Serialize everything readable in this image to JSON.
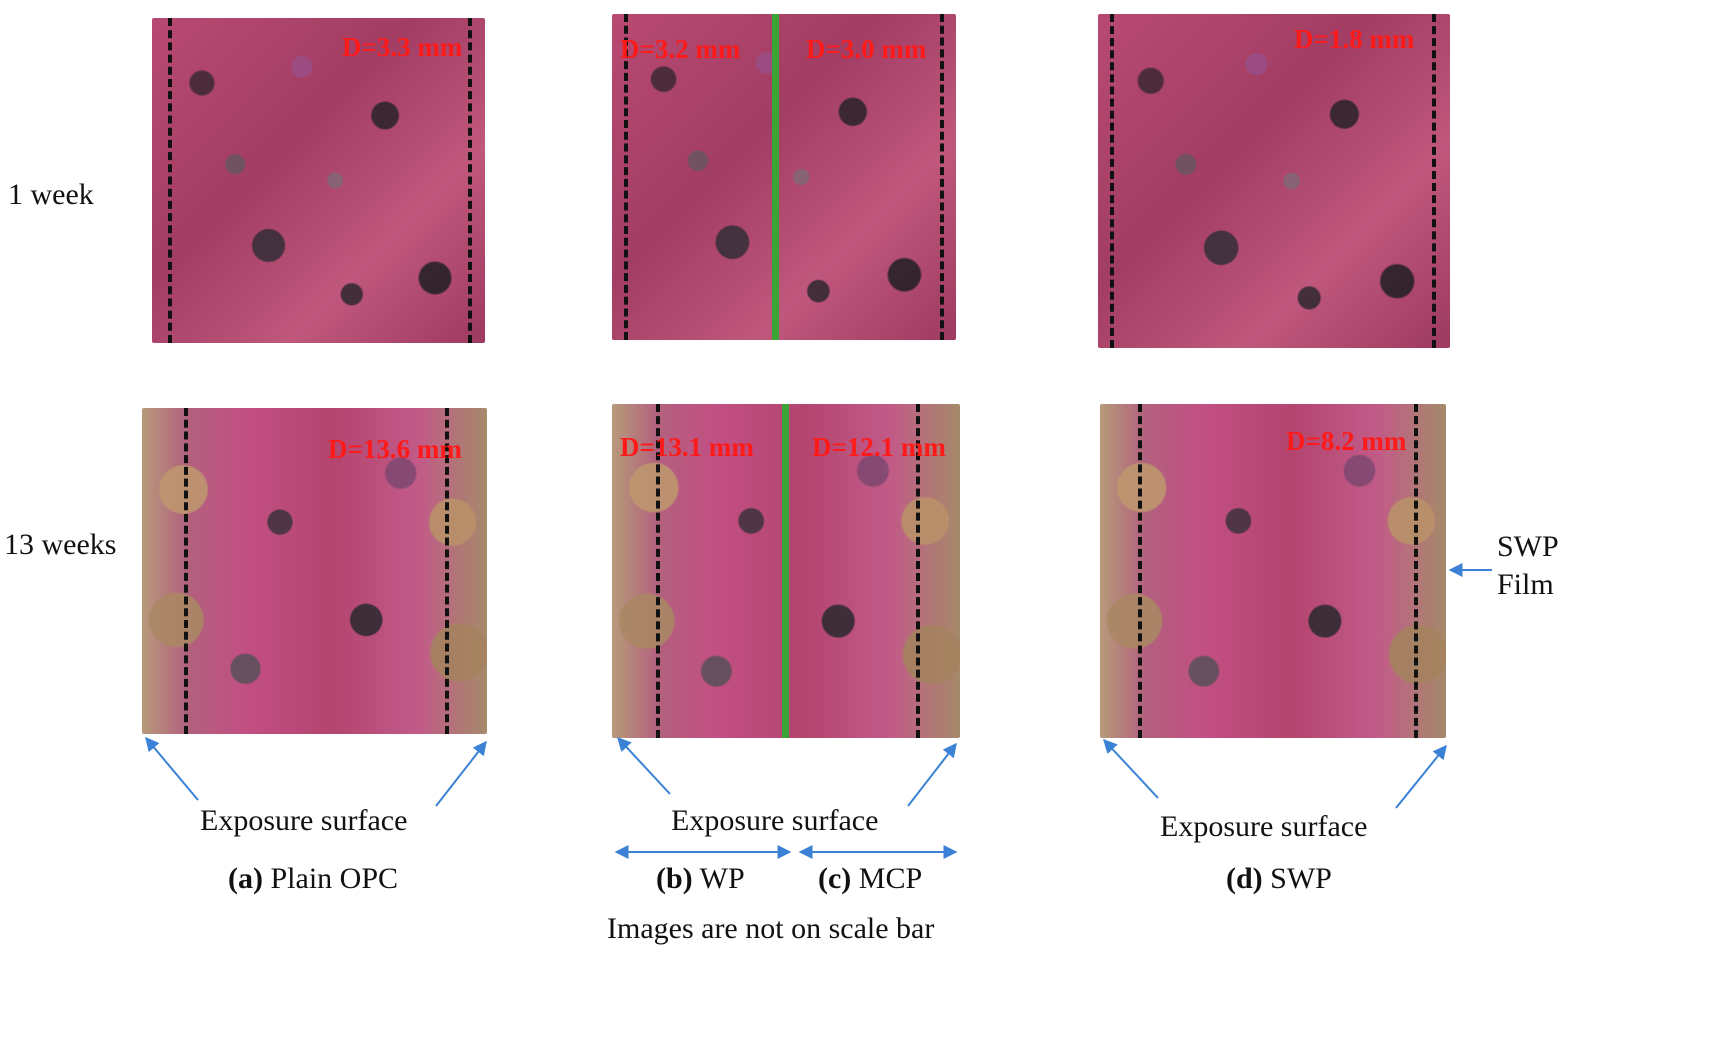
{
  "rows": {
    "week1": "1 week",
    "week13": "13 weeks"
  },
  "depths": {
    "a1": "D=3.3 mm",
    "b1": "D=3.2 mm",
    "c1": "D=3.0 mm",
    "d1": "D=1.8 mm",
    "a13": "D=13.6 mm",
    "b13": "D=13.1 mm",
    "c13": "D=12.1 mm",
    "d13": "D=8.2 mm"
  },
  "annotations": {
    "swp_film_line1": "SWP",
    "swp_film_line2": "Film",
    "exposure_surface": "Exposure surface",
    "scale_note": "Images are not on scale bar"
  },
  "captions": {
    "a_letter": "(a)",
    "a_text": "Plain OPC",
    "b_letter": "(b)",
    "b_text": "WP",
    "c_letter": "(c)",
    "c_text": "MCP",
    "d_letter": "(d)",
    "d_text": "SWP"
  },
  "colors": {
    "depth_text": "#ff1a1a",
    "arrow": "#3b82d6",
    "split_line": "#3aa535"
  }
}
